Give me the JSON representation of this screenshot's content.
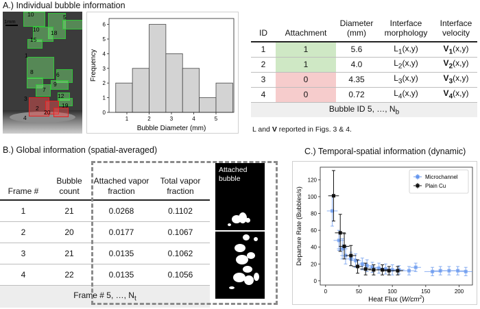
{
  "section_a": {
    "title": "A.) Individual bubble information",
    "scale_label": "1mm",
    "bubble_labels": [
      "10",
      "5",
      "18",
      "10",
      "15",
      "1",
      "8",
      "6",
      "9",
      "7",
      "3",
      "12",
      "19",
      "2",
      "20",
      "4"
    ],
    "histogram": {
      "chart_data": {
        "type": "bar",
        "xlabel": "Bubble Diameter (mm)",
        "ylabel": "Frequency",
        "bin_edges": [
          0.5,
          1.25,
          2.0,
          2.75,
          3.5,
          4.25,
          5.0,
          5.75
        ],
        "values": [
          2,
          3,
          6,
          4,
          3,
          1,
          2
        ],
        "x_ticks": [
          "1",
          "2",
          "3",
          "4",
          "5"
        ],
        "y_ticks": [
          "0",
          "1",
          "2",
          "3",
          "4",
          "5",
          "6"
        ],
        "xlim": [
          0.2,
          5.8
        ],
        "ylim": [
          0,
          6.4
        ]
      }
    },
    "table": {
      "headers": [
        "ID",
        "Attachment",
        "Diameter (mm)",
        "Interface morphology",
        "Interface velocity"
      ],
      "rows": [
        {
          "id": "1",
          "attachment": "1",
          "diameter": "5.6",
          "morph_main": "L",
          "morph_sub": "1",
          "morph_arg": "(x,y)",
          "vel_main": "V",
          "vel_sub": "1",
          "vel_arg": "(x,y)"
        },
        {
          "id": "2",
          "attachment": "1",
          "diameter": "4.0",
          "morph_main": "L",
          "morph_sub": "2",
          "morph_arg": "(x,y)",
          "vel_main": "V",
          "vel_sub": "2",
          "vel_arg": "(x,y)"
        },
        {
          "id": "3",
          "attachment": "0",
          "diameter": "4.35",
          "morph_main": "L",
          "morph_sub": "3",
          "morph_arg": "(x,y)",
          "vel_main": "V",
          "vel_sub": "3",
          "vel_arg": "(x,y)"
        },
        {
          "id": "4",
          "attachment": "0",
          "diameter": "0.72",
          "morph_main": "L",
          "morph_sub": "4",
          "morph_arg": "(x,y)",
          "vel_main": "V",
          "vel_sub": "4",
          "vel_arg": "(x,y)"
        }
      ],
      "footer_main": "Bubble ID 5, …, N",
      "footer_sub": "b"
    },
    "note_pre": "L and ",
    "note_bold": "V",
    "note_post": " reported in Figs. 3 & 4."
  },
  "section_b": {
    "title": "B.) Global information (spatial-averaged)",
    "headers": [
      "Frame #",
      "Bubble count",
      "Attached vapor fraction",
      "Total vapor fraction"
    ],
    "rows": [
      {
        "frame": "1",
        "count": "21",
        "attached": "0.0268",
        "total": "0.1102"
      },
      {
        "frame": "2",
        "count": "20",
        "attached": "0.0177",
        "total": "0.1067"
      },
      {
        "frame": "3",
        "count": "21",
        "attached": "0.0135",
        "total": "0.1062"
      },
      {
        "frame": "4",
        "count": "22",
        "attached": "0.0135",
        "total": "0.1056"
      }
    ],
    "footer_main": "Frame # 5, …, N",
    "footer_sub": "t",
    "attached_label": "Attached bubble"
  },
  "section_c": {
    "title": "C.) Temporal-spatial information (dynamic)",
    "chart_data": {
      "type": "scatter",
      "xlabel_main": "Heat Flux (",
      "xlabel_unit": "W/cm",
      "xlabel_exp": "2",
      "xlabel_close": ")",
      "ylabel": "Departure Rate (Bubbles/s)",
      "xlim": [
        -8,
        220
      ],
      "ylim": [
        -5,
        135
      ],
      "x_ticks": [
        0,
        50,
        100,
        150,
        200
      ],
      "y_ticks": [
        0,
        20,
        40,
        60,
        80,
        100,
        120
      ],
      "legend_position": "top-right",
      "series": [
        {
          "name": "Microchannel",
          "color": "#6495ed",
          "x": [
            10,
            20,
            25,
            30,
            38,
            45,
            55,
            62,
            70,
            80,
            90,
            100,
            110,
            125,
            135,
            160,
            172,
            185,
            198,
            210
          ],
          "y": [
            83,
            48,
            38,
            30,
            26,
            24,
            20,
            18,
            16,
            15,
            14,
            13,
            13,
            12,
            16,
            11,
            12,
            12,
            12,
            11
          ],
          "xerr": [
            8,
            8,
            8,
            8,
            8,
            8,
            8,
            8,
            8,
            8,
            8,
            8,
            8,
            10,
            8,
            12,
            10,
            10,
            10,
            10
          ],
          "yerr": [
            18,
            12,
            12,
            10,
            8,
            8,
            7,
            7,
            6,
            6,
            6,
            6,
            5,
            5,
            5,
            5,
            5,
            5,
            5,
            5
          ]
        },
        {
          "name": "Plain Cu",
          "color": "#111111",
          "x": [
            12,
            22,
            28,
            38,
            48,
            60,
            72,
            85,
            95,
            108
          ],
          "y": [
            101,
            57,
            41,
            30,
            17,
            14,
            13,
            13,
            12,
            12
          ],
          "xerr": [
            8,
            8,
            8,
            8,
            8,
            8,
            8,
            8,
            8,
            8
          ],
          "yerr": [
            30,
            22,
            15,
            12,
            8,
            7,
            6,
            6,
            5,
            5
          ]
        }
      ]
    }
  }
}
